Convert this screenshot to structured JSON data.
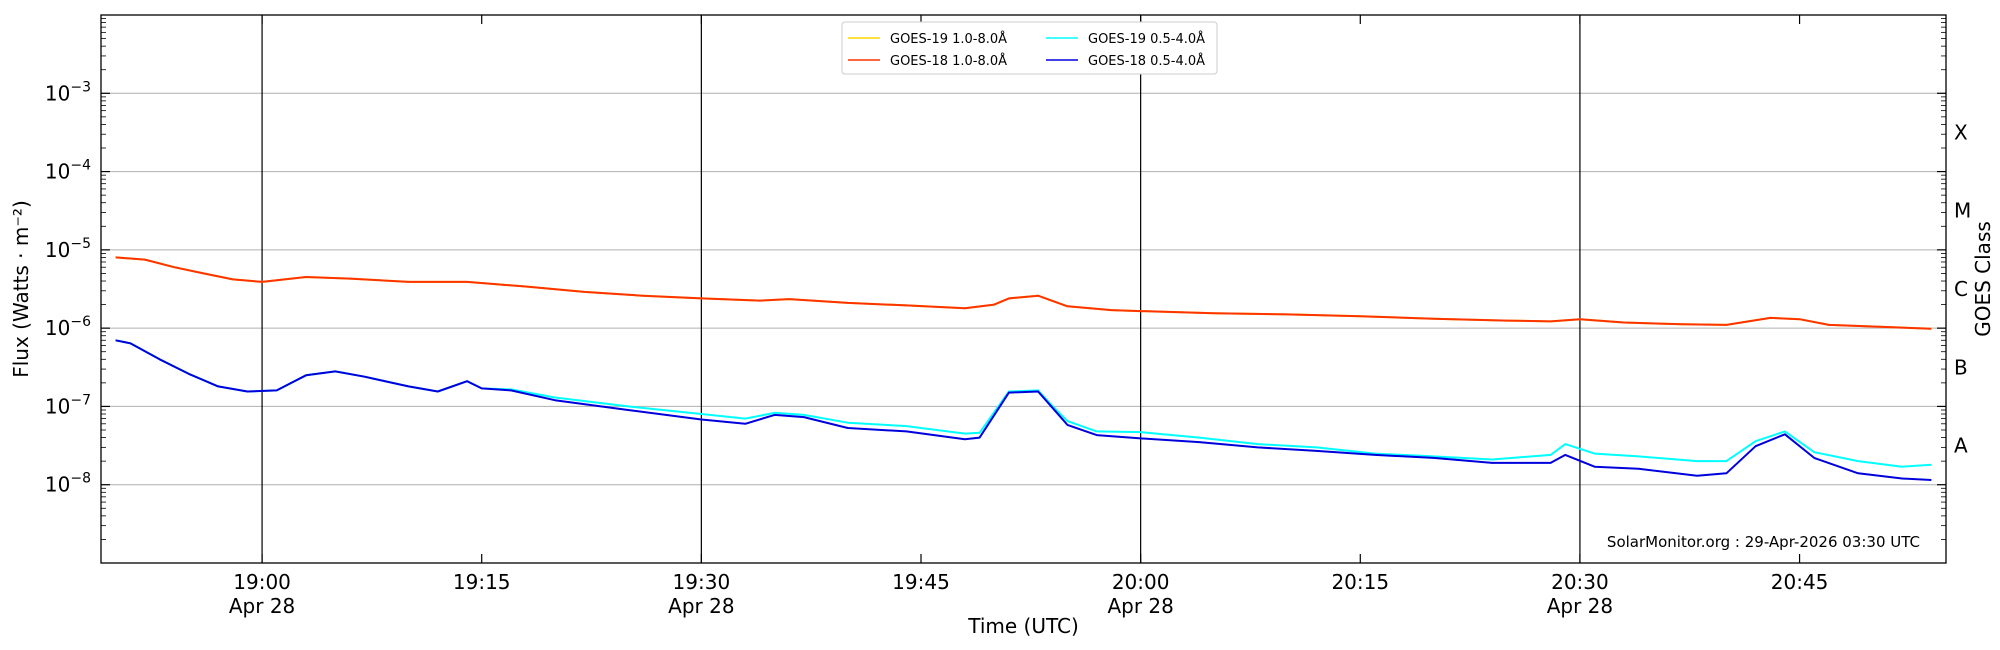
{
  "chart_data": {
    "type": "line",
    "xlabel": "Time (UTC)",
    "ylabel": "Flux (Watts · m⁻²)",
    "right_label": "GOES Class",
    "x_range": [
      "18:49",
      "20:55"
    ],
    "ylim": [
      1e-09,
      0.01
    ],
    "log_y": true,
    "y_ticks": [
      {
        "value": 1e-08,
        "base": "10",
        "exp": "−8"
      },
      {
        "value": 1e-07,
        "base": "10",
        "exp": "−7"
      },
      {
        "value": 1e-06,
        "base": "10",
        "exp": "−6"
      },
      {
        "value": 1e-05,
        "base": "10",
        "exp": "−5"
      },
      {
        "value": 0.0001,
        "base": "10",
        "exp": "−4"
      },
      {
        "value": 0.001,
        "base": "10",
        "exp": "−3"
      }
    ],
    "x_ticks": [
      {
        "time": "19:00",
        "label": "19:00",
        "date": "Apr 28"
      },
      {
        "time": "19:15",
        "label": "19:15",
        "date": ""
      },
      {
        "time": "19:30",
        "label": "19:30",
        "date": "Apr 28"
      },
      {
        "time": "19:45",
        "label": "19:45",
        "date": ""
      },
      {
        "time": "20:00",
        "label": "20:00",
        "date": "Apr 28"
      },
      {
        "time": "20:15",
        "label": "20:15",
        "date": ""
      },
      {
        "time": "20:30",
        "label": "20:30",
        "date": "Apr 28"
      },
      {
        "time": "20:45",
        "label": "20:45",
        "date": ""
      }
    ],
    "vertical_lines": [
      "19:00",
      "19:30",
      "20:00",
      "20:30"
    ],
    "goes_classes": [
      {
        "label": "X",
        "value": 0.0001
      },
      {
        "label": "M",
        "value": 1e-05
      },
      {
        "label": "C",
        "value": 1e-06
      },
      {
        "label": "B",
        "value": 1e-07
      },
      {
        "label": "A",
        "value": 1e-08
      }
    ],
    "grid": "horizontal",
    "legend_position": "top-center",
    "series": [
      {
        "name": "GOES-19 1.0-8.0Å",
        "color": "#ffd700",
        "points": [
          [
            "18:50",
            8e-06
          ],
          [
            "18:52",
            7.5e-06
          ],
          [
            "18:54",
            6e-06
          ],
          [
            "18:56",
            5e-06
          ],
          [
            "18:58",
            4.2e-06
          ],
          [
            "19:00",
            3.9e-06
          ],
          [
            "19:03",
            4.5e-06
          ],
          [
            "19:06",
            4.3e-06
          ],
          [
            "19:10",
            3.9e-06
          ],
          [
            "19:14",
            3.9e-06
          ],
          [
            "19:18",
            3.4e-06
          ],
          [
            "19:22",
            2.9e-06
          ],
          [
            "19:26",
            2.6e-06
          ],
          [
            "19:30",
            2.4e-06
          ],
          [
            "19:34",
            2.25e-06
          ],
          [
            "19:36",
            2.35e-06
          ],
          [
            "19:40",
            2.1e-06
          ],
          [
            "19:44",
            1.95e-06
          ],
          [
            "19:48",
            1.8e-06
          ],
          [
            "19:50",
            2e-06
          ],
          [
            "19:51",
            2.4e-06
          ],
          [
            "19:53",
            2.6e-06
          ],
          [
            "19:55",
            1.9e-06
          ],
          [
            "19:58",
            1.7e-06
          ],
          [
            "20:00",
            1.65e-06
          ],
          [
            "20:05",
            1.55e-06
          ],
          [
            "20:10",
            1.5e-06
          ],
          [
            "20:15",
            1.42e-06
          ],
          [
            "20:20",
            1.32e-06
          ],
          [
            "20:25",
            1.25e-06
          ],
          [
            "20:28",
            1.22e-06
          ],
          [
            "20:30",
            1.3e-06
          ],
          [
            "20:33",
            1.18e-06
          ],
          [
            "20:37",
            1.12e-06
          ],
          [
            "20:40",
            1.1e-06
          ],
          [
            "20:43",
            1.35e-06
          ],
          [
            "20:45",
            1.3e-06
          ],
          [
            "20:47",
            1.1e-06
          ],
          [
            "20:50",
            1.05e-06
          ],
          [
            "20:54",
            9.8e-07
          ]
        ]
      },
      {
        "name": "GOES-18 1.0-8.0Å",
        "color": "#ff3300",
        "points": [
          [
            "18:50",
            8e-06
          ],
          [
            "18:52",
            7.5e-06
          ],
          [
            "18:54",
            6e-06
          ],
          [
            "18:56",
            5e-06
          ],
          [
            "18:58",
            4.2e-06
          ],
          [
            "19:00",
            3.9e-06
          ],
          [
            "19:03",
            4.5e-06
          ],
          [
            "19:06",
            4.3e-06
          ],
          [
            "19:10",
            3.9e-06
          ],
          [
            "19:14",
            3.9e-06
          ],
          [
            "19:18",
            3.4e-06
          ],
          [
            "19:22",
            2.9e-06
          ],
          [
            "19:26",
            2.6e-06
          ],
          [
            "19:30",
            2.4e-06
          ],
          [
            "19:34",
            2.25e-06
          ],
          [
            "19:36",
            2.35e-06
          ],
          [
            "19:40",
            2.1e-06
          ],
          [
            "19:44",
            1.95e-06
          ],
          [
            "19:48",
            1.8e-06
          ],
          [
            "19:50",
            2e-06
          ],
          [
            "19:51",
            2.4e-06
          ],
          [
            "19:53",
            2.6e-06
          ],
          [
            "19:55",
            1.9e-06
          ],
          [
            "19:58",
            1.7e-06
          ],
          [
            "20:00",
            1.65e-06
          ],
          [
            "20:05",
            1.55e-06
          ],
          [
            "20:10",
            1.5e-06
          ],
          [
            "20:15",
            1.42e-06
          ],
          [
            "20:20",
            1.32e-06
          ],
          [
            "20:25",
            1.25e-06
          ],
          [
            "20:28",
            1.22e-06
          ],
          [
            "20:30",
            1.3e-06
          ],
          [
            "20:33",
            1.18e-06
          ],
          [
            "20:37",
            1.12e-06
          ],
          [
            "20:40",
            1.1e-06
          ],
          [
            "20:43",
            1.35e-06
          ],
          [
            "20:45",
            1.3e-06
          ],
          [
            "20:47",
            1.1e-06
          ],
          [
            "20:50",
            1.05e-06
          ],
          [
            "20:54",
            9.8e-07
          ]
        ]
      },
      {
        "name": "GOES-19 0.5-4.0Å",
        "color": "#00ffff",
        "points": [
          [
            "18:50",
            7e-07
          ],
          [
            "18:51",
            6.4e-07
          ],
          [
            "18:53",
            4e-07
          ],
          [
            "18:55",
            2.6e-07
          ],
          [
            "18:57",
            1.8e-07
          ],
          [
            "18:59",
            1.55e-07
          ],
          [
            "19:01",
            1.6e-07
          ],
          [
            "19:03",
            2.5e-07
          ],
          [
            "19:05",
            2.8e-07
          ],
          [
            "19:07",
            2.4e-07
          ],
          [
            "19:10",
            1.8e-07
          ],
          [
            "19:12",
            1.55e-07
          ],
          [
            "19:14",
            2.1e-07
          ],
          [
            "19:15",
            1.7e-07
          ],
          [
            "19:17",
            1.65e-07
          ],
          [
            "19:20",
            1.3e-07
          ],
          [
            "19:25",
            1e-07
          ],
          [
            "19:30",
            8e-08
          ],
          [
            "19:33",
            7e-08
          ],
          [
            "19:35",
            8.3e-08
          ],
          [
            "19:37",
            7.8e-08
          ],
          [
            "19:40",
            6.2e-08
          ],
          [
            "19:44",
            5.6e-08
          ],
          [
            "19:48",
            4.5e-08
          ],
          [
            "19:49",
            4.6e-08
          ],
          [
            "19:51",
            1.55e-07
          ],
          [
            "19:53",
            1.6e-07
          ],
          [
            "19:54",
            1e-07
          ],
          [
            "19:55",
            6.5e-08
          ],
          [
            "19:57",
            4.8e-08
          ],
          [
            "20:00",
            4.7e-08
          ],
          [
            "20:04",
            4e-08
          ],
          [
            "20:08",
            3.3e-08
          ],
          [
            "20:12",
            3e-08
          ],
          [
            "20:16",
            2.5e-08
          ],
          [
            "20:20",
            2.3e-08
          ],
          [
            "20:24",
            2.1e-08
          ],
          [
            "20:28",
            2.4e-08
          ],
          [
            "20:29",
            3.3e-08
          ],
          [
            "20:31",
            2.5e-08
          ],
          [
            "20:34",
            2.3e-08
          ],
          [
            "20:38",
            2e-08
          ],
          [
            "20:40",
            2e-08
          ],
          [
            "20:42",
            3.6e-08
          ],
          [
            "20:44",
            4.8e-08
          ],
          [
            "20:46",
            2.6e-08
          ],
          [
            "20:49",
            2e-08
          ],
          [
            "20:52",
            1.7e-08
          ],
          [
            "20:54",
            1.8e-08
          ]
        ]
      },
      {
        "name": "GOES-18 0.5-4.0Å",
        "color": "#0000dd",
        "points": [
          [
            "18:50",
            7e-07
          ],
          [
            "18:51",
            6.4e-07
          ],
          [
            "18:53",
            4e-07
          ],
          [
            "18:55",
            2.6e-07
          ],
          [
            "18:57",
            1.8e-07
          ],
          [
            "18:59",
            1.55e-07
          ],
          [
            "19:01",
            1.6e-07
          ],
          [
            "19:03",
            2.5e-07
          ],
          [
            "19:05",
            2.8e-07
          ],
          [
            "19:07",
            2.4e-07
          ],
          [
            "19:10",
            1.8e-07
          ],
          [
            "19:12",
            1.55e-07
          ],
          [
            "19:14",
            2.1e-07
          ],
          [
            "19:15",
            1.7e-07
          ],
          [
            "19:17",
            1.6e-07
          ],
          [
            "19:20",
            1.2e-07
          ],
          [
            "19:25",
            9e-08
          ],
          [
            "19:30",
            6.8e-08
          ],
          [
            "19:33",
            6e-08
          ],
          [
            "19:35",
            7.8e-08
          ],
          [
            "19:37",
            7.3e-08
          ],
          [
            "19:40",
            5.3e-08
          ],
          [
            "19:44",
            4.8e-08
          ],
          [
            "19:48",
            3.8e-08
          ],
          [
            "19:49",
            4e-08
          ],
          [
            "19:51",
            1.5e-07
          ],
          [
            "19:53",
            1.55e-07
          ],
          [
            "19:54",
            9.5e-08
          ],
          [
            "19:55",
            5.8e-08
          ],
          [
            "19:57",
            4.3e-08
          ],
          [
            "20:00",
            3.9e-08
          ],
          [
            "20:04",
            3.5e-08
          ],
          [
            "20:08",
            3e-08
          ],
          [
            "20:12",
            2.7e-08
          ],
          [
            "20:16",
            2.4e-08
          ],
          [
            "20:20",
            2.2e-08
          ],
          [
            "20:24",
            1.9e-08
          ],
          [
            "20:28",
            1.9e-08
          ],
          [
            "20:29",
            2.4e-08
          ],
          [
            "20:31",
            1.7e-08
          ],
          [
            "20:34",
            1.6e-08
          ],
          [
            "20:38",
            1.3e-08
          ],
          [
            "20:40",
            1.4e-08
          ],
          [
            "20:42",
            3.1e-08
          ],
          [
            "20:44",
            4.4e-08
          ],
          [
            "20:46",
            2.2e-08
          ],
          [
            "20:49",
            1.4e-08
          ],
          [
            "20:52",
            1.2e-08
          ],
          [
            "20:54",
            1.15e-08
          ]
        ]
      }
    ],
    "footer": "SolarMonitor.org : 29-Apr-2026 03:30 UTC"
  }
}
